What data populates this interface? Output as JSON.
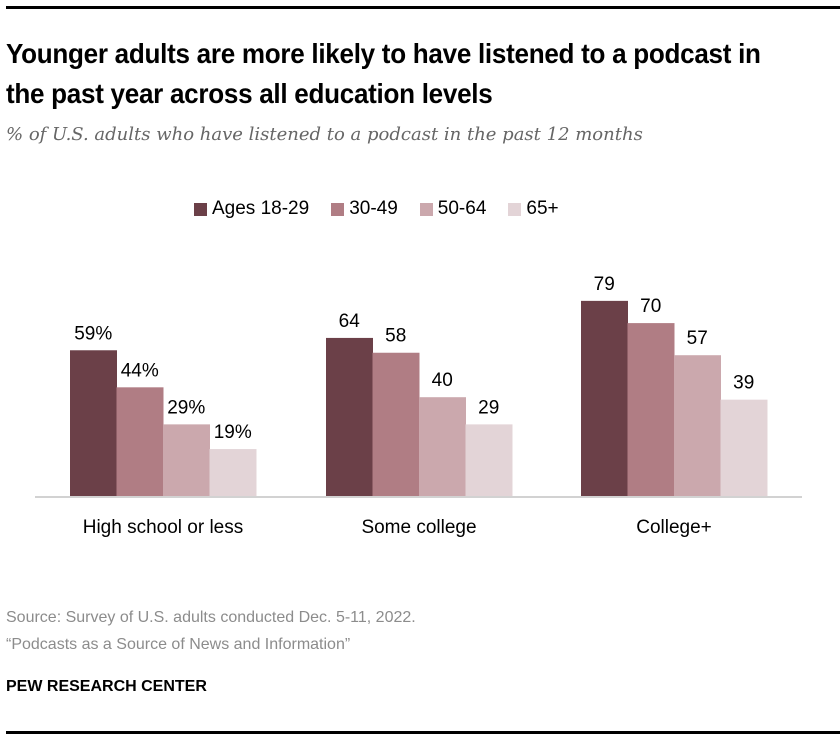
{
  "header": {
    "title": "Younger adults are more likely to have listened to a podcast in the past year across all education levels",
    "subtitle": "% of U.S. adults who have listened to a podcast in the past 12 months"
  },
  "legend": [
    {
      "label": "Ages 18-29",
      "color": "#6b4048"
    },
    {
      "label": "30-49",
      "color": "#b07d84"
    },
    {
      "label": "50-64",
      "color": "#cba8ad"
    },
    {
      "label": "65+",
      "color": "#e3d4d7"
    }
  ],
  "chart_data": {
    "type": "bar",
    "title": "Younger adults are more likely to have listened to a podcast in the past year across all education levels",
    "subtitle": "% of U.S. adults who have listened to a podcast in the past 12 months",
    "xlabel": "",
    "ylabel": "",
    "ylim": [
      0,
      100
    ],
    "grid": false,
    "legend_position": "top-center",
    "categories": [
      "High school or less",
      "Some college",
      "College+"
    ],
    "series": [
      {
        "name": "Ages 18-29",
        "color": "#6b4048",
        "values": [
          59,
          64,
          79
        ],
        "labels": [
          "59%",
          "64",
          "79"
        ]
      },
      {
        "name": "30-49",
        "color": "#b07d84",
        "values": [
          44,
          58,
          70
        ],
        "labels": [
          "44%",
          "58",
          "70"
        ]
      },
      {
        "name": "50-64",
        "color": "#cba8ad",
        "values": [
          29,
          40,
          57
        ],
        "labels": [
          "29%",
          "40",
          "57"
        ]
      },
      {
        "name": "65+",
        "color": "#e3d4d7",
        "values": [
          19,
          29,
          39
        ],
        "labels": [
          "19%",
          "29",
          "39"
        ]
      }
    ]
  },
  "footer": {
    "source": "Source: Survey of U.S. adults conducted Dec. 5-11, 2022.",
    "report": "“Podcasts as a Source of News and Information”",
    "brand": "PEW RESEARCH CENTER"
  }
}
